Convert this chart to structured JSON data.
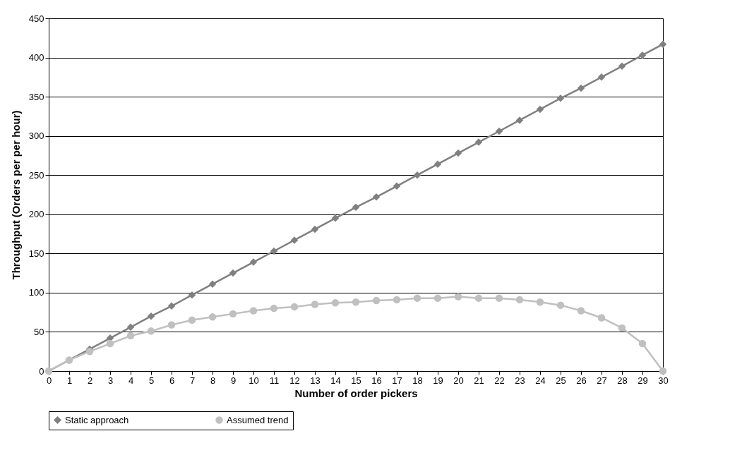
{
  "chart_data": {
    "type": "line",
    "xlabel": "Number of order pickers",
    "ylabel": "Throughput (Orders per per hour)",
    "x": [
      0,
      1,
      2,
      3,
      4,
      5,
      6,
      7,
      8,
      9,
      10,
      11,
      12,
      13,
      14,
      15,
      16,
      17,
      18,
      19,
      20,
      21,
      22,
      23,
      24,
      25,
      26,
      27,
      28,
      29,
      30
    ],
    "series": [
      {
        "name": "Static approach",
        "color": "#808080",
        "marker": "diamond",
        "values": [
          0,
          14,
          28,
          42,
          56,
          70,
          83,
          97,
          111,
          125,
          139,
          153,
          167,
          181,
          195,
          209,
          222,
          236,
          250,
          264,
          278,
          292,
          306,
          320,
          334,
          348,
          361,
          375,
          389,
          403,
          417
        ]
      },
      {
        "name": "Assumed trend",
        "color": "#c0c0c0",
        "marker": "circle",
        "values": [
          0,
          14,
          25,
          35,
          45,
          51,
          59,
          65,
          69,
          73,
          77,
          80,
          82,
          85,
          87,
          88,
          90,
          91,
          93,
          93,
          95,
          93,
          93,
          91,
          88,
          84,
          77,
          68,
          55,
          35,
          0
        ]
      }
    ],
    "xlim": [
      0,
      30
    ],
    "xticks": [
      0,
      1,
      2,
      3,
      4,
      5,
      6,
      7,
      8,
      9,
      10,
      11,
      12,
      13,
      14,
      15,
      16,
      17,
      18,
      19,
      20,
      21,
      22,
      23,
      24,
      25,
      26,
      27,
      28,
      29,
      30
    ],
    "ylim": [
      0,
      450
    ],
    "yticks": [
      0,
      50,
      100,
      150,
      200,
      250,
      300,
      350,
      400,
      450
    ],
    "grid": "y",
    "legend": "bottom",
    "line_style": "solid"
  }
}
